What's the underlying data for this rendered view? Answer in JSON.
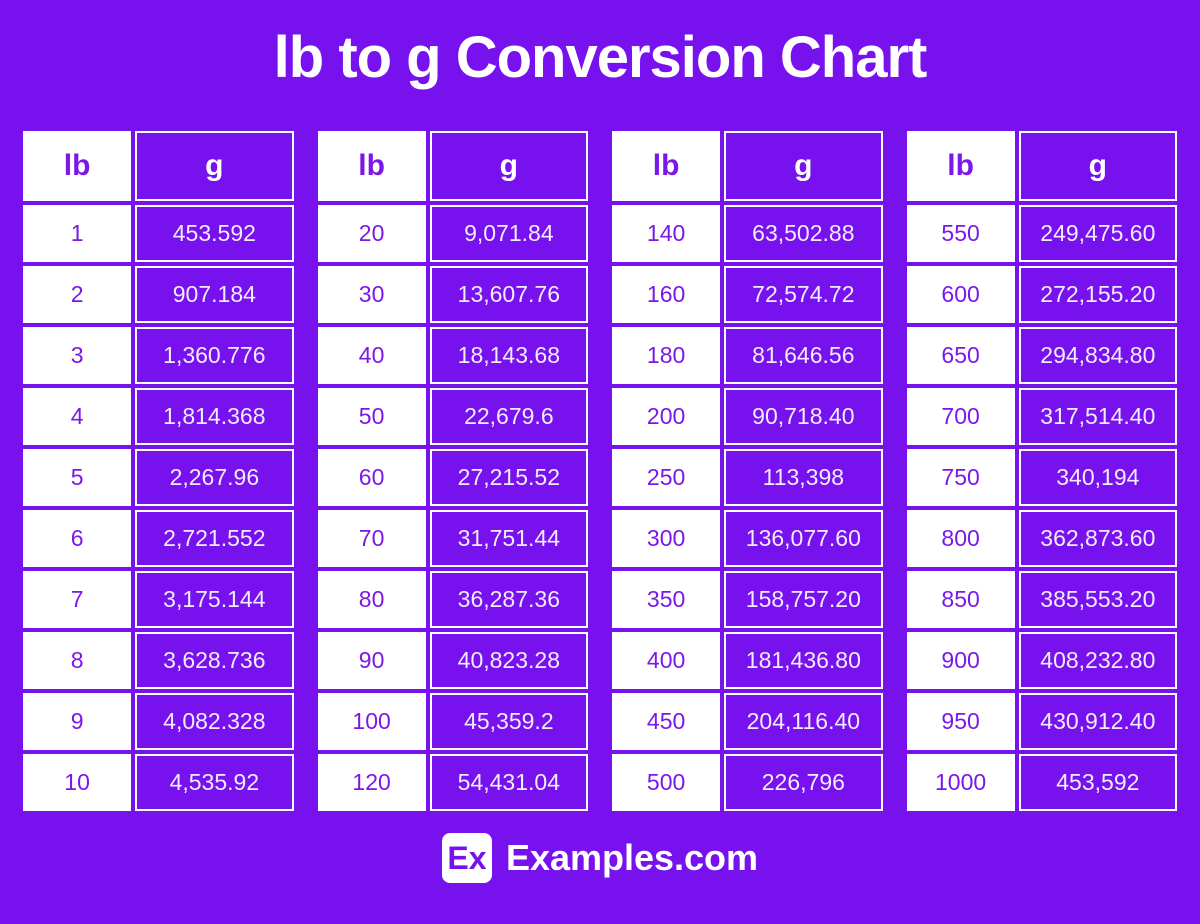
{
  "page": {
    "title": "lb to g Conversion Chart",
    "background_color": "#7711EE",
    "accent_white": "#FFFFFF"
  },
  "table_headers": {
    "lb": "lb",
    "g": "g"
  },
  "tables": [
    {
      "rows": [
        {
          "lb": "1",
          "g": "453.592"
        },
        {
          "lb": "2",
          "g": "907.184"
        },
        {
          "lb": "3",
          "g": "1,360.776"
        },
        {
          "lb": "4",
          "g": "1,814.368"
        },
        {
          "lb": "5",
          "g": "2,267.96"
        },
        {
          "lb": "6",
          "g": "2,721.552"
        },
        {
          "lb": "7",
          "g": "3,175.144"
        },
        {
          "lb": "8",
          "g": "3,628.736"
        },
        {
          "lb": "9",
          "g": "4,082.328"
        },
        {
          "lb": "10",
          "g": "4,535.92"
        }
      ]
    },
    {
      "rows": [
        {
          "lb": "20",
          "g": "9,071.84"
        },
        {
          "lb": "30",
          "g": "13,607.76"
        },
        {
          "lb": "40",
          "g": "18,143.68"
        },
        {
          "lb": "50",
          "g": "22,679.6"
        },
        {
          "lb": "60",
          "g": "27,215.52"
        },
        {
          "lb": "70",
          "g": "31,751.44"
        },
        {
          "lb": "80",
          "g": "36,287.36"
        },
        {
          "lb": "90",
          "g": "40,823.28"
        },
        {
          "lb": "100",
          "g": "45,359.2"
        },
        {
          "lb": "120",
          "g": "54,431.04"
        }
      ]
    },
    {
      "rows": [
        {
          "lb": "140",
          "g": "63,502.88"
        },
        {
          "lb": "160",
          "g": "72,574.72"
        },
        {
          "lb": "180",
          "g": "81,646.56"
        },
        {
          "lb": "200",
          "g": "90,718.40"
        },
        {
          "lb": "250",
          "g": "113,398"
        },
        {
          "lb": "300",
          "g": "136,077.60"
        },
        {
          "lb": "350",
          "g": "158,757.20"
        },
        {
          "lb": "400",
          "g": "181,436.80"
        },
        {
          "lb": "450",
          "g": "204,116.40"
        },
        {
          "lb": "500",
          "g": "226,796"
        }
      ]
    },
    {
      "rows": [
        {
          "lb": "550",
          "g": "249,475.60"
        },
        {
          "lb": "600",
          "g": "272,155.20"
        },
        {
          "lb": "650",
          "g": "294,834.80"
        },
        {
          "lb": "700",
          "g": "317,514.40"
        },
        {
          "lb": "750",
          "g": "340,194"
        },
        {
          "lb": "800",
          "g": "362,873.60"
        },
        {
          "lb": "850",
          "g": "385,553.20"
        },
        {
          "lb": "900",
          "g": "408,232.80"
        },
        {
          "lb": "950",
          "g": "430,912.40"
        },
        {
          "lb": "1000",
          "g": "453,592"
        }
      ]
    }
  ],
  "footer": {
    "logo_text": "Ex",
    "site_name": "Examples.com"
  },
  "chart_data": {
    "type": "table",
    "title": "lb to g Conversion Chart",
    "columns": [
      "lb",
      "g"
    ],
    "rows": [
      [
        1,
        453.592
      ],
      [
        2,
        907.184
      ],
      [
        3,
        1360.776
      ],
      [
        4,
        1814.368
      ],
      [
        5,
        2267.96
      ],
      [
        6,
        2721.552
      ],
      [
        7,
        3175.144
      ],
      [
        8,
        3628.736
      ],
      [
        9,
        4082.328
      ],
      [
        10,
        4535.92
      ],
      [
        20,
        9071.84
      ],
      [
        30,
        13607.76
      ],
      [
        40,
        18143.68
      ],
      [
        50,
        22679.6
      ],
      [
        60,
        27215.52
      ],
      [
        70,
        31751.44
      ],
      [
        80,
        36287.36
      ],
      [
        90,
        40823.28
      ],
      [
        100,
        45359.2
      ],
      [
        120,
        54431.04
      ],
      [
        140,
        63502.88
      ],
      [
        160,
        72574.72
      ],
      [
        180,
        81646.56
      ],
      [
        200,
        90718.4
      ],
      [
        250,
        113398
      ],
      [
        300,
        136077.6
      ],
      [
        350,
        158757.2
      ],
      [
        400,
        181436.8
      ],
      [
        450,
        204116.4
      ],
      [
        500,
        226796
      ],
      [
        550,
        249475.6
      ],
      [
        600,
        272155.2
      ],
      [
        650,
        294834.8
      ],
      [
        700,
        317514.4
      ],
      [
        750,
        340194
      ],
      [
        800,
        362873.6
      ],
      [
        850,
        385553.2
      ],
      [
        900,
        408232.8
      ],
      [
        950,
        430912.4
      ],
      [
        1000,
        453592
      ]
    ]
  }
}
